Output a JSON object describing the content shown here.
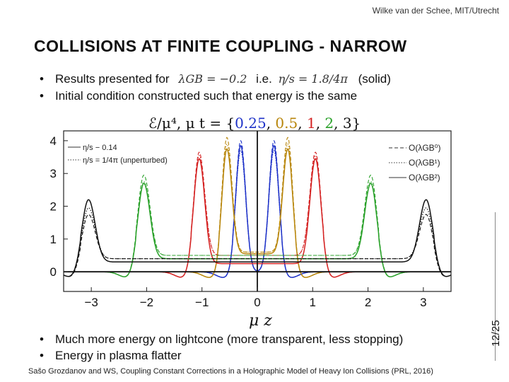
{
  "header": {
    "author": "Wilke van der Schee, MIT/Utrecht"
  },
  "title": "COLLISIONS AT FINITE COUPLING - NARROW",
  "bullets_top": [
    {
      "text_before": "Results presented for",
      "math1": "λGB = −0.2",
      "text_mid": "i.e.",
      "math2": "η/s = 1.8/4π",
      "text_after": "(solid)"
    },
    {
      "text": "Initial condition constructed such that energy is the same"
    }
  ],
  "bullets_bottom": [
    "Much more energy on lightcone (more transparent, less stopping)",
    "Energy in plasma flatter"
  ],
  "citation": "Sašo Grozdanov and WS, Coupling Constant Corrections in a Holographic Model of Heavy Ion Collisions (PRL, 2016)",
  "page_number": "12/25",
  "chart_data": {
    "type": "line",
    "title_prefix": "ℰ/μ⁴, μ t = ",
    "time_values": [
      {
        "label": "0.25",
        "color": "#1e32c8"
      },
      {
        "label": "0.5",
        "color": "#b8860b"
      },
      {
        "label": "1",
        "color": "#d42020"
      },
      {
        "label": "2",
        "color": "#28a028"
      },
      {
        "label": "3",
        "color": "#111111"
      }
    ],
    "xlabel": "μ z",
    "ylabel": "",
    "xlim": [
      -3.5,
      3.5
    ],
    "ylim": [
      -0.6,
      4.3
    ],
    "xticks": [
      -3,
      -2,
      -1,
      0,
      1,
      2,
      3
    ],
    "xtick_labels": [
      "−3",
      "−2",
      "−1",
      "0",
      "1",
      "2",
      "3"
    ],
    "yticks": [
      0,
      1,
      2,
      3,
      4
    ],
    "ytick_labels": [
      "0",
      "1",
      "2",
      "3",
      "4"
    ],
    "legend_left": [
      {
        "label": "η/s − 0.14",
        "style": "solid"
      },
      {
        "label": "η/s = 1/4π (unperturbed)",
        "style": "dotted"
      }
    ],
    "legend_right": [
      {
        "label": "O(λGB⁰)",
        "style": "dashed"
      },
      {
        "label": "O(λGB¹)",
        "style": "dotted"
      },
      {
        "label": "O(λGB²)",
        "style": "solid"
      }
    ],
    "series": [
      {
        "name": "0.25",
        "color": "#1e32c8",
        "peaks": [
          {
            "x": -0.3,
            "solid": 3.85,
            "dashed": 4.0,
            "dotted": 3.7,
            "width": 0.09
          },
          {
            "x": 0.3,
            "solid": 3.85,
            "dashed": 4.0,
            "dotted": 3.7,
            "width": 0.09
          }
        ],
        "plateau_solid": 0.0,
        "plateau_dashed": 0.0
      },
      {
        "name": "0.5",
        "color": "#b8860b",
        "peaks": [
          {
            "x": -0.55,
            "solid": 3.75,
            "dashed": 4.1,
            "dotted": 3.9,
            "width": 0.09
          },
          {
            "x": 0.55,
            "solid": 3.75,
            "dashed": 4.1,
            "dotted": 3.9,
            "width": 0.09
          }
        ],
        "plateau_solid": 0.55,
        "plateau_dashed": 0.6
      },
      {
        "name": "1",
        "color": "#d42020",
        "peaks": [
          {
            "x": -1.05,
            "solid": 3.45,
            "dashed": 3.65,
            "dotted": 3.55,
            "width": 0.1
          },
          {
            "x": 1.05,
            "solid": 3.45,
            "dashed": 3.65,
            "dotted": 3.55,
            "width": 0.1
          }
        ],
        "plateau_solid": 0.25,
        "plateau_dashed": 0.5
      },
      {
        "name": "2",
        "color": "#28a028",
        "peaks": [
          {
            "x": -2.05,
            "solid": 2.7,
            "dashed": 2.95,
            "dotted": 2.75,
            "width": 0.11
          },
          {
            "x": 2.05,
            "solid": 2.7,
            "dashed": 2.95,
            "dotted": 2.75,
            "width": 0.11
          }
        ],
        "plateau_solid": 0.4,
        "plateau_dashed": 0.5
      },
      {
        "name": "3",
        "color": "#111111",
        "peaks": [
          {
            "x": -3.05,
            "solid": 2.2,
            "dashed": 1.75,
            "dotted": 1.95,
            "width": 0.12
          },
          {
            "x": 3.05,
            "solid": 2.2,
            "dashed": 1.75,
            "dotted": 1.95,
            "width": 0.12
          }
        ],
        "plateau_solid": 0.3,
        "plateau_dashed": 0.4
      }
    ]
  }
}
